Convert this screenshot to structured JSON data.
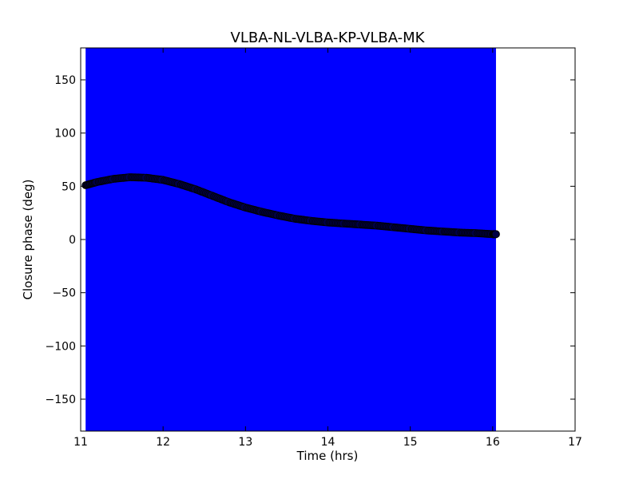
{
  "chart_data": {
    "type": "scatter",
    "title": "VLBA-NL-VLBA-KP-VLBA-MK",
    "xlabel": "Time (hrs)",
    "ylabel": "Closure phase (deg)",
    "xlim": [
      11,
      17
    ],
    "ylim": [
      -180,
      180
    ],
    "xticks": [
      11,
      12,
      13,
      14,
      15,
      16,
      17
    ],
    "yticks": [
      -150,
      -100,
      -50,
      0,
      50,
      100,
      150
    ],
    "grid": false,
    "legend": "none",
    "shaded_band": {
      "x_start": 11.06,
      "x_end": 16.04,
      "color": "#0000ff"
    },
    "series": [
      {
        "color": "#000044",
        "x": [
          11.06,
          11.2,
          11.4,
          11.6,
          11.8,
          12.0,
          12.2,
          12.4,
          12.6,
          12.8,
          13.0,
          13.2,
          13.4,
          13.6,
          13.8,
          14.0,
          14.2,
          14.4,
          14.6,
          14.8,
          15.0,
          15.2,
          15.4,
          15.6,
          15.8,
          16.0,
          16.04
        ],
        "y": [
          51,
          54,
          57,
          58.5,
          58,
          56,
          52,
          47,
          41,
          35,
          30,
          26,
          22.5,
          19.5,
          17.5,
          16,
          15,
          14,
          13,
          11.5,
          10,
          8.5,
          7.5,
          6.5,
          6,
          5,
          5
        ]
      }
    ]
  },
  "colors": {
    "band": "#0000ff",
    "points": "#000044",
    "axes": "#000000",
    "background": "#ffffff"
  }
}
